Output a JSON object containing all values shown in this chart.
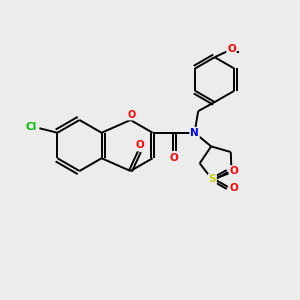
{
  "bg_color": "#ececec",
  "bond_color": "#000000",
  "line_width": 1.4,
  "atom_colors": {
    "O": "#ff0000",
    "N": "#0000ff",
    "Cl": "#00bb00",
    "S": "#cccc00",
    "C": "#000000"
  },
  "figsize": [
    3.0,
    3.0
  ],
  "dpi": 100
}
